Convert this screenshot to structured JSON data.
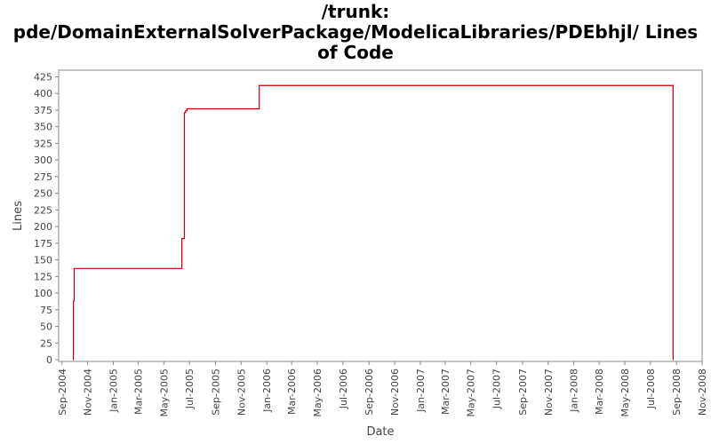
{
  "title_lines": [
    "/trunk:",
    "pde/DomainExternalSolverPackage/ModelicaLibraries/PDEbhjl/ Lines",
    "of Code"
  ],
  "chart_data": {
    "type": "line",
    "title": "/trunk: pde/DomainExternalSolverPackage/ModelicaLibraries/PDEbhjl/ Lines of Code",
    "xlabel": "Date",
    "ylabel": "Lines",
    "xlim": [
      "2004-08-24",
      "2008-11-01"
    ],
    "ylim": [
      0,
      435
    ],
    "y_ticks": [
      0,
      25,
      50,
      75,
      100,
      125,
      150,
      175,
      200,
      225,
      250,
      275,
      300,
      325,
      350,
      375,
      400,
      425
    ],
    "x_ticks": [
      {
        "date": "2004-09-01",
        "label": "Sep-2004"
      },
      {
        "date": "2004-11-01",
        "label": "Nov-2004"
      },
      {
        "date": "2005-01-01",
        "label": "Jan-2005"
      },
      {
        "date": "2005-03-01",
        "label": "Mar-2005"
      },
      {
        "date": "2005-05-01",
        "label": "May-2005"
      },
      {
        "date": "2005-07-01",
        "label": "Jul-2005"
      },
      {
        "date": "2005-09-01",
        "label": "Sep-2005"
      },
      {
        "date": "2005-11-01",
        "label": "Nov-2005"
      },
      {
        "date": "2006-01-01",
        "label": "Jan-2006"
      },
      {
        "date": "2006-03-01",
        "label": "Mar-2006"
      },
      {
        "date": "2006-05-01",
        "label": "May-2006"
      },
      {
        "date": "2006-07-01",
        "label": "Jul-2006"
      },
      {
        "date": "2006-09-01",
        "label": "Sep-2006"
      },
      {
        "date": "2006-11-01",
        "label": "Nov-2006"
      },
      {
        "date": "2007-01-01",
        "label": "Jan-2007"
      },
      {
        "date": "2007-03-01",
        "label": "Mar-2007"
      },
      {
        "date": "2007-05-01",
        "label": "May-2007"
      },
      {
        "date": "2007-07-01",
        "label": "Jul-2007"
      },
      {
        "date": "2007-09-01",
        "label": "Sep-2007"
      },
      {
        "date": "2007-11-01",
        "label": "Nov-2007"
      },
      {
        "date": "2008-01-01",
        "label": "Jan-2008"
      },
      {
        "date": "2008-03-01",
        "label": "Mar-2008"
      },
      {
        "date": "2008-05-01",
        "label": "May-2008"
      },
      {
        "date": "2008-07-01",
        "label": "Jul-2008"
      },
      {
        "date": "2008-09-01",
        "label": "Sep-2008"
      },
      {
        "date": "2008-11-01",
        "label": "Nov-2008"
      }
    ],
    "series": [
      {
        "color": "#cc0000",
        "step": true,
        "points": [
          {
            "x": "2004-09-28",
            "y": 0
          },
          {
            "x": "2004-09-28",
            "y": 88
          },
          {
            "x": "2004-09-30",
            "y": 137
          },
          {
            "x": "2005-06-13",
            "y": 182
          },
          {
            "x": "2005-06-19",
            "y": 371
          },
          {
            "x": "2005-06-22",
            "y": 374
          },
          {
            "x": "2005-06-25",
            "y": 377
          },
          {
            "x": "2005-12-14",
            "y": 412
          },
          {
            "x": "2008-08-24",
            "y": 412
          },
          {
            "x": "2008-08-24",
            "y": 0
          }
        ]
      }
    ],
    "grid": false,
    "legend": "none"
  }
}
